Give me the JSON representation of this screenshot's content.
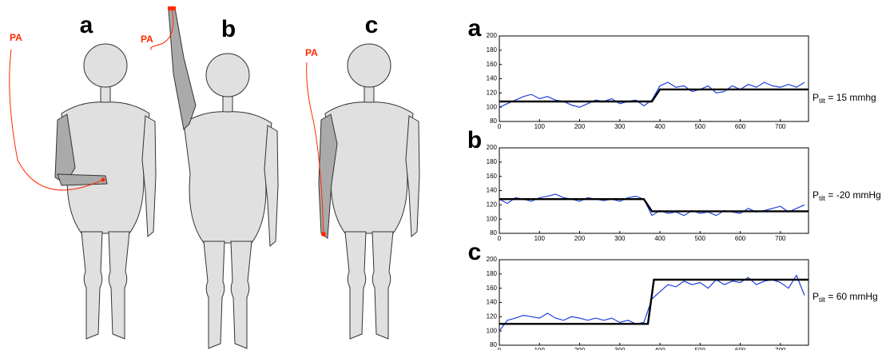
{
  "figure": {
    "labels": [
      "a",
      "b",
      "c"
    ],
    "pa": [
      "PA",
      "PA",
      "PA"
    ]
  },
  "chart_data": [
    {
      "type": "line",
      "panel": "a",
      "xlim": [
        0,
        770
      ],
      "ylim": [
        80,
        200
      ],
      "xticks": [
        0,
        100,
        200,
        300,
        400,
        500,
        600,
        700
      ],
      "yticks": [
        80,
        100,
        120,
        140,
        160,
        180,
        200
      ],
      "annotation": {
        "base": "P",
        "sub": "tilt",
        "rest": " = 15 mmhg"
      },
      "series": [
        {
          "color": "#1f3fe0",
          "x": [
            0,
            20,
            40,
            60,
            80,
            100,
            120,
            140,
            160,
            180,
            200,
            220,
            240,
            260,
            280,
            300,
            320,
            340,
            360,
            380,
            400,
            420,
            440,
            460,
            480,
            500,
            520,
            540,
            560,
            580,
            600,
            620,
            640,
            660,
            680,
            700,
            720,
            740,
            760
          ],
          "values": [
            100,
            105,
            110,
            115,
            118,
            112,
            115,
            110,
            108,
            103,
            100,
            105,
            110,
            108,
            112,
            105,
            108,
            110,
            102,
            110,
            130,
            135,
            128,
            130,
            122,
            125,
            130,
            120,
            122,
            130,
            125,
            132,
            128,
            135,
            130,
            128,
            132,
            128,
            135
          ]
        },
        {
          "color": "#000000",
          "x": [
            0,
            380,
            400,
            770
          ],
          "values": [
            108,
            108,
            125,
            125
          ]
        }
      ]
    },
    {
      "type": "line",
      "panel": "b",
      "xlim": [
        0,
        770
      ],
      "ylim": [
        80,
        200
      ],
      "xticks": [
        0,
        100,
        200,
        300,
        400,
        500,
        600,
        700
      ],
      "yticks": [
        80,
        100,
        120,
        140,
        160,
        180,
        200
      ],
      "annotation": {
        "base": "P",
        "sub": "tilt",
        "rest": " = -20 mmHg"
      },
      "series": [
        {
          "color": "#1f3fe0",
          "x": [
            0,
            20,
            40,
            60,
            80,
            100,
            120,
            140,
            160,
            180,
            200,
            220,
            240,
            260,
            280,
            300,
            320,
            340,
            360,
            380,
            400,
            420,
            440,
            460,
            480,
            500,
            520,
            540,
            560,
            580,
            600,
            620,
            640,
            660,
            680,
            700,
            720,
            740,
            760
          ],
          "values": [
            128,
            122,
            130,
            128,
            125,
            130,
            132,
            135,
            130,
            128,
            125,
            130,
            128,
            126,
            128,
            125,
            130,
            132,
            128,
            105,
            112,
            108,
            110,
            105,
            112,
            108,
            110,
            105,
            112,
            110,
            108,
            115,
            110,
            112,
            115,
            118,
            110,
            115,
            120
          ]
        },
        {
          "color": "#000000",
          "x": [
            0,
            360,
            380,
            770
          ],
          "values": [
            128,
            128,
            111,
            111
          ]
        }
      ]
    },
    {
      "type": "line",
      "panel": "c",
      "xlim": [
        0,
        770
      ],
      "ylim": [
        80,
        200
      ],
      "xticks": [
        0,
        100,
        200,
        300,
        400,
        500,
        600,
        700
      ],
      "yticks": [
        80,
        100,
        120,
        140,
        160,
        180,
        200
      ],
      "annotation": {
        "base": "P",
        "sub": "tilt",
        "rest": " = 60 mmHg"
      },
      "series": [
        {
          "color": "#1f3fe0",
          "x": [
            0,
            20,
            40,
            60,
            80,
            100,
            120,
            140,
            160,
            180,
            200,
            220,
            240,
            260,
            280,
            300,
            320,
            340,
            360,
            380,
            400,
            420,
            440,
            460,
            480,
            500,
            520,
            540,
            560,
            580,
            600,
            620,
            640,
            660,
            680,
            700,
            720,
            740,
            760
          ],
          "values": [
            100,
            115,
            118,
            122,
            120,
            118,
            125,
            118,
            115,
            120,
            118,
            115,
            118,
            115,
            118,
            112,
            115,
            110,
            112,
            145,
            155,
            165,
            162,
            170,
            165,
            168,
            160,
            172,
            165,
            170,
            168,
            175,
            165,
            170,
            172,
            168,
            160,
            178,
            150
          ]
        },
        {
          "color": "#000000",
          "x": [
            0,
            370,
            385,
            770
          ],
          "values": [
            110,
            110,
            172,
            172
          ]
        }
      ]
    }
  ]
}
